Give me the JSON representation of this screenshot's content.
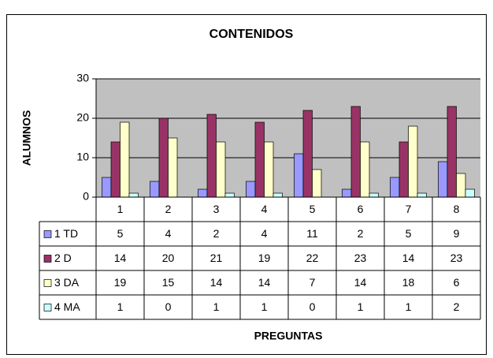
{
  "chart_data": {
    "type": "bar",
    "title": "CONTENIDOS",
    "x_label": "PREGUNTAS",
    "y_label": "ALUMNOS",
    "categories": [
      "1",
      "2",
      "3",
      "4",
      "5",
      "6",
      "7",
      "8"
    ],
    "series": [
      {
        "name": "1 TD",
        "color": "#9999ff",
        "values": [
          5,
          4,
          2,
          4,
          11,
          2,
          5,
          9
        ]
      },
      {
        "name": "2 D",
        "color": "#993366",
        "values": [
          14,
          20,
          21,
          19,
          22,
          23,
          14,
          23
        ]
      },
      {
        "name": "3 DA",
        "color": "#ffffcc",
        "values": [
          19,
          15,
          14,
          14,
          7,
          14,
          18,
          6
        ]
      },
      {
        "name": "4 MA",
        "color": "#ccffff",
        "values": [
          1,
          0,
          1,
          1,
          0,
          1,
          1,
          2
        ]
      }
    ],
    "ylim": [
      0,
      30
    ],
    "yticks": [
      0,
      10,
      20,
      30
    ],
    "plot_background": "#c0c0c0",
    "data_table": true
  }
}
